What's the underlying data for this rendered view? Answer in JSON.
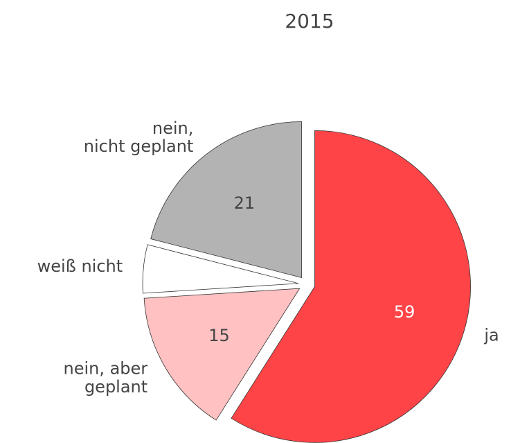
{
  "chart_data": {
    "type": "pie",
    "title": "2015",
    "categories": [
      "ja",
      "nein, aber\ngeplant",
      "weiß nicht",
      "nein,\nnicht geplant"
    ],
    "values": [
      59,
      15,
      5,
      21
    ],
    "value_labels": [
      "59",
      "15",
      null,
      "21"
    ],
    "colors": [
      "#ff4447",
      "#ffc1c1",
      "#ffffff",
      "#b3b3b3"
    ],
    "value_label_colors": [
      "#ffffff",
      "#444444",
      "#444444",
      "#444444"
    ]
  }
}
